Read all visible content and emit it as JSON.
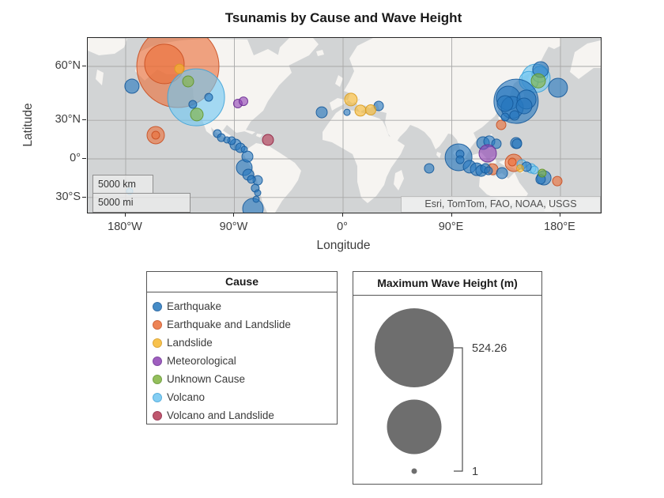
{
  "figure": {
    "title": "Tsunamis by Cause and Wave Height"
  },
  "axes": {
    "xlabel": "Longitude",
    "ylabel": "Latitude",
    "x_ticks": [
      {
        "lon": -180,
        "label": "180°W"
      },
      {
        "lon": -90,
        "label": "90°W"
      },
      {
        "lon": 0,
        "label": "0°"
      },
      {
        "lon": 90,
        "label": "90°E"
      },
      {
        "lon": 180,
        "label": "180°E"
      }
    ],
    "y_ticks": [
      {
        "lat": 60,
        "label": "60°N"
      },
      {
        "lat": 30,
        "label": "30°N"
      },
      {
        "lat": 0,
        "label": "0°"
      },
      {
        "lat": -30,
        "label": "30°S"
      }
    ]
  },
  "map": {
    "scalebar_km": "5000 km",
    "scalebar_mi": "5000 mi",
    "attribution": "Esri, TomTom, FAO, NOAA, USGS"
  },
  "cause_legend": {
    "title": "Cause",
    "items": [
      {
        "key": "eq",
        "label": "Earthquake"
      },
      {
        "key": "el",
        "label": "Earthquake and Landslide"
      },
      {
        "key": "ls",
        "label": "Landslide"
      },
      {
        "key": "mt",
        "label": "Meteorological"
      },
      {
        "key": "uk",
        "label": "Unknown Cause"
      },
      {
        "key": "vo",
        "label": "Volcano"
      },
      {
        "key": "vl",
        "label": "Volcano and Landslide"
      }
    ]
  },
  "size_legend": {
    "title": "Maximum Wave Height (m)",
    "max_label": "524.26",
    "min_label": "1"
  },
  "colors": {
    "ocean": "#d2d4d5",
    "land": "#f6f4f1",
    "grid": "#a8a8a8",
    "frame": "#262626",
    "size_circle": "#6e6e6e",
    "fill_opacity": 0.62,
    "causes": {
      "eq": {
        "fill": "#2678BE",
        "stroke": "#15599A"
      },
      "el": {
        "fill": "#EA6E38",
        "stroke": "#C94F21"
      },
      "ls": {
        "fill": "#F7B82E",
        "stroke": "#D89B1E"
      },
      "mt": {
        "fill": "#8F42B4",
        "stroke": "#6C2D94"
      },
      "uk": {
        "fill": "#82B440",
        "stroke": "#5F9428"
      },
      "vo": {
        "fill": "#6FC6F2",
        "stroke": "#3FA3D8"
      },
      "vl": {
        "fill": "#B43A55",
        "stroke": "#8F2040"
      }
    }
  },
  "chart_data": {
    "type": "scatter",
    "subtype": "geobubble-map",
    "title": "Tsunamis by Cause and Wave Height",
    "xlabel": "Longitude",
    "ylabel": "Latitude",
    "lon_range": [
      -211,
      213
    ],
    "lat_range": [
      -40.6,
      69.7
    ],
    "size_range_m": [
      1,
      524.26
    ],
    "grid": true,
    "legend_position": "below-map",
    "series": [
      {
        "key": "el",
        "name": "Earthquake and Landslide",
        "points": [
          {
            "lon": -136.8,
            "lat": 60.0,
            "r": 52
          },
          {
            "lon": -147.9,
            "lat": 61.0,
            "r": 25
          },
          {
            "lon": -155.1,
            "lat": 19.0,
            "r": 11
          },
          {
            "lon": -155.1,
            "lat": 19.0,
            "r": 5
          },
          {
            "lon": 130.9,
            "lat": 26.7,
            "r": 6
          },
          {
            "lon": 123.7,
            "lat": -8.4,
            "r": 7
          },
          {
            "lon": 141.4,
            "lat": -3.2,
            "r": 11
          },
          {
            "lon": 140.1,
            "lat": -2.6,
            "r": 5
          },
          {
            "lon": 177.4,
            "lat": -17.8,
            "r": 6
          }
        ]
      },
      {
        "key": "vo",
        "name": "Volcano",
        "points": [
          {
            "lon": -121.7,
            "lat": 44.8,
            "r": 36
          },
          {
            "lon": 159.7,
            "lat": 54.8,
            "r": 18
          },
          {
            "lon": 153.8,
            "lat": 53.6,
            "r": 12
          },
          {
            "lon": 163.0,
            "lat": 56.6,
            "r": 10
          },
          {
            "lon": -176.7,
            "lat": -25.6,
            "r": 4
          },
          {
            "lon": 147.9,
            "lat": -4.5,
            "r": 6
          },
          {
            "lon": 155.8,
            "lat": -7.7,
            "r": 6
          },
          {
            "lon": 158.4,
            "lat": -9.0,
            "r": 5
          }
        ]
      },
      {
        "key": "eq",
        "name": "Earthquake",
        "points": [
          {
            "lon": 143.3,
            "lat": 42.5,
            "r": 28
          },
          {
            "lon": 95.6,
            "lat": 1.3,
            "r": 17
          },
          {
            "lon": 178.0,
            "lat": 50.1,
            "r": 12
          },
          {
            "lon": 136.8,
            "lat": 44.4,
            "r": 15
          },
          {
            "lon": 140.1,
            "lat": 38.6,
            "r": 14
          },
          {
            "lon": -74.6,
            "lat": -37.6,
            "r": 13
          },
          {
            "lon": 151.9,
            "lat": 43.5,
            "r": 12
          },
          {
            "lon": 163.6,
            "lat": 58.7,
            "r": 10
          },
          {
            "lon": 149.9,
            "lat": 39.6,
            "r": 10
          },
          {
            "lon": 134.2,
            "lat": 41.1,
            "r": 10
          },
          {
            "lon": -81.8,
            "lat": -7.1,
            "r": 10
          },
          {
            "lon": -174.8,
            "lat": 50.9,
            "r": 9
          },
          {
            "lon": 166.3,
            "lat": -15.3,
            "r": 9
          },
          {
            "lon": 115.9,
            "lat": 12.8,
            "r": 8
          },
          {
            "lon": 104.7,
            "lat": -6.4,
            "r": 8
          },
          {
            "lon": 110.6,
            "lat": -8.4,
            "r": 8
          },
          {
            "lon": 121.1,
            "lat": 14.1,
            "r": 7
          },
          {
            "lon": 114.5,
            "lat": -9.7,
            "r": 7
          },
          {
            "lon": 131.6,
            "lat": -11.5,
            "r": 7
          },
          {
            "lon": 143.3,
            "lat": 12.8,
            "r": 7
          },
          {
            "lon": -89.0,
            "lat": 11.5,
            "r": 7
          },
          {
            "lon": -79.2,
            "lat": 1.9,
            "r": 7
          },
          {
            "lon": -78.5,
            "lat": -12.8,
            "r": 7
          },
          {
            "lon": -17.7,
            "lat": 35.5,
            "r": 7
          },
          {
            "lon": 29.5,
            "lat": 39.6,
            "r": 6
          },
          {
            "lon": 71.3,
            "lat": -7.7,
            "r": 6
          },
          {
            "lon": 127.0,
            "lat": 12.2,
            "r": 6
          },
          {
            "lon": 144.0,
            "lat": 12.2,
            "r": 6
          },
          {
            "lon": 117.8,
            "lat": -7.7,
            "r": 6
          },
          {
            "lon": 151.9,
            "lat": -6.4,
            "r": 6
          },
          {
            "lon": 163.6,
            "lat": -16.5,
            "r": 6
          },
          {
            "lon": -85.1,
            "lat": 9.0,
            "r": 6
          },
          {
            "lon": -70.7,
            "lat": -17.2,
            "r": 6
          },
          {
            "lon": 142.0,
            "lat": 33.4,
            "r": 6
          },
          {
            "lon": -92.3,
            "lat": 14.7,
            "r": 5
          },
          {
            "lon": -104.1,
            "lat": 20.2,
            "r": 5
          },
          {
            "lon": -100.8,
            "lat": 17.1,
            "r": 5
          },
          {
            "lon": -81.8,
            "lat": 7.7,
            "r": 4
          },
          {
            "lon": -75.9,
            "lat": -16.5,
            "r": 5
          },
          {
            "lon": -72.7,
            "lat": -23.2,
            "r": 5
          },
          {
            "lon": 134.2,
            "lat": 32.3,
            "r": 5
          },
          {
            "lon": 96.9,
            "lat": 3.9,
            "r": 5
          },
          {
            "lon": 96.9,
            "lat": -0.7,
            "r": 5
          },
          {
            "lon": 120.4,
            "lat": -9.7,
            "r": 5
          },
          {
            "lon": -111.3,
            "lat": 44.8,
            "r": 5
          },
          {
            "lon": -124.4,
            "lat": 40.6,
            "r": 5
          },
          {
            "lon": 3.3,
            "lat": 35.5,
            "r": 4
          },
          {
            "lon": -96.2,
            "lat": 15.3,
            "r": 4
          },
          {
            "lon": -70.7,
            "lat": -26.7,
            "r": 4
          },
          {
            "lon": -72.0,
            "lat": -31.2,
            "r": 4
          }
        ]
      },
      {
        "key": "ls",
        "name": "Landslide",
        "points": [
          {
            "lon": 6.5,
            "lat": 43.5,
            "r": 8
          },
          {
            "lon": 14.4,
            "lat": 36.6,
            "r": 7
          },
          {
            "lon": 22.9,
            "lat": 37.1,
            "r": 6.5
          },
          {
            "lon": -135.5,
            "lat": 59.0,
            "r": 6
          },
          {
            "lon": 146.6,
            "lat": -7.7,
            "r": 4.5
          }
        ]
      },
      {
        "key": "mt",
        "name": "Meteorological",
        "points": [
          {
            "lon": 119.8,
            "lat": 4.5,
            "r": 11
          },
          {
            "lon": -87.1,
            "lat": 41.1,
            "r": 5.5
          },
          {
            "lon": -82.5,
            "lat": 42.5,
            "r": 5.5
          }
        ]
      },
      {
        "key": "uk",
        "name": "Unknown Cause",
        "points": [
          {
            "lon": -128.3,
            "lat": 53.3,
            "r": 7
          },
          {
            "lon": -121.1,
            "lat": 34.0,
            "r": 8
          },
          {
            "lon": 161.7,
            "lat": 53.6,
            "r": 9
          },
          {
            "lon": 164.9,
            "lat": -11.5,
            "r": 5
          }
        ]
      },
      {
        "key": "vl",
        "name": "Volcano and Landslide",
        "points": [
          {
            "lon": -62.2,
            "lat": 15.3,
            "r": 7
          }
        ]
      }
    ]
  }
}
